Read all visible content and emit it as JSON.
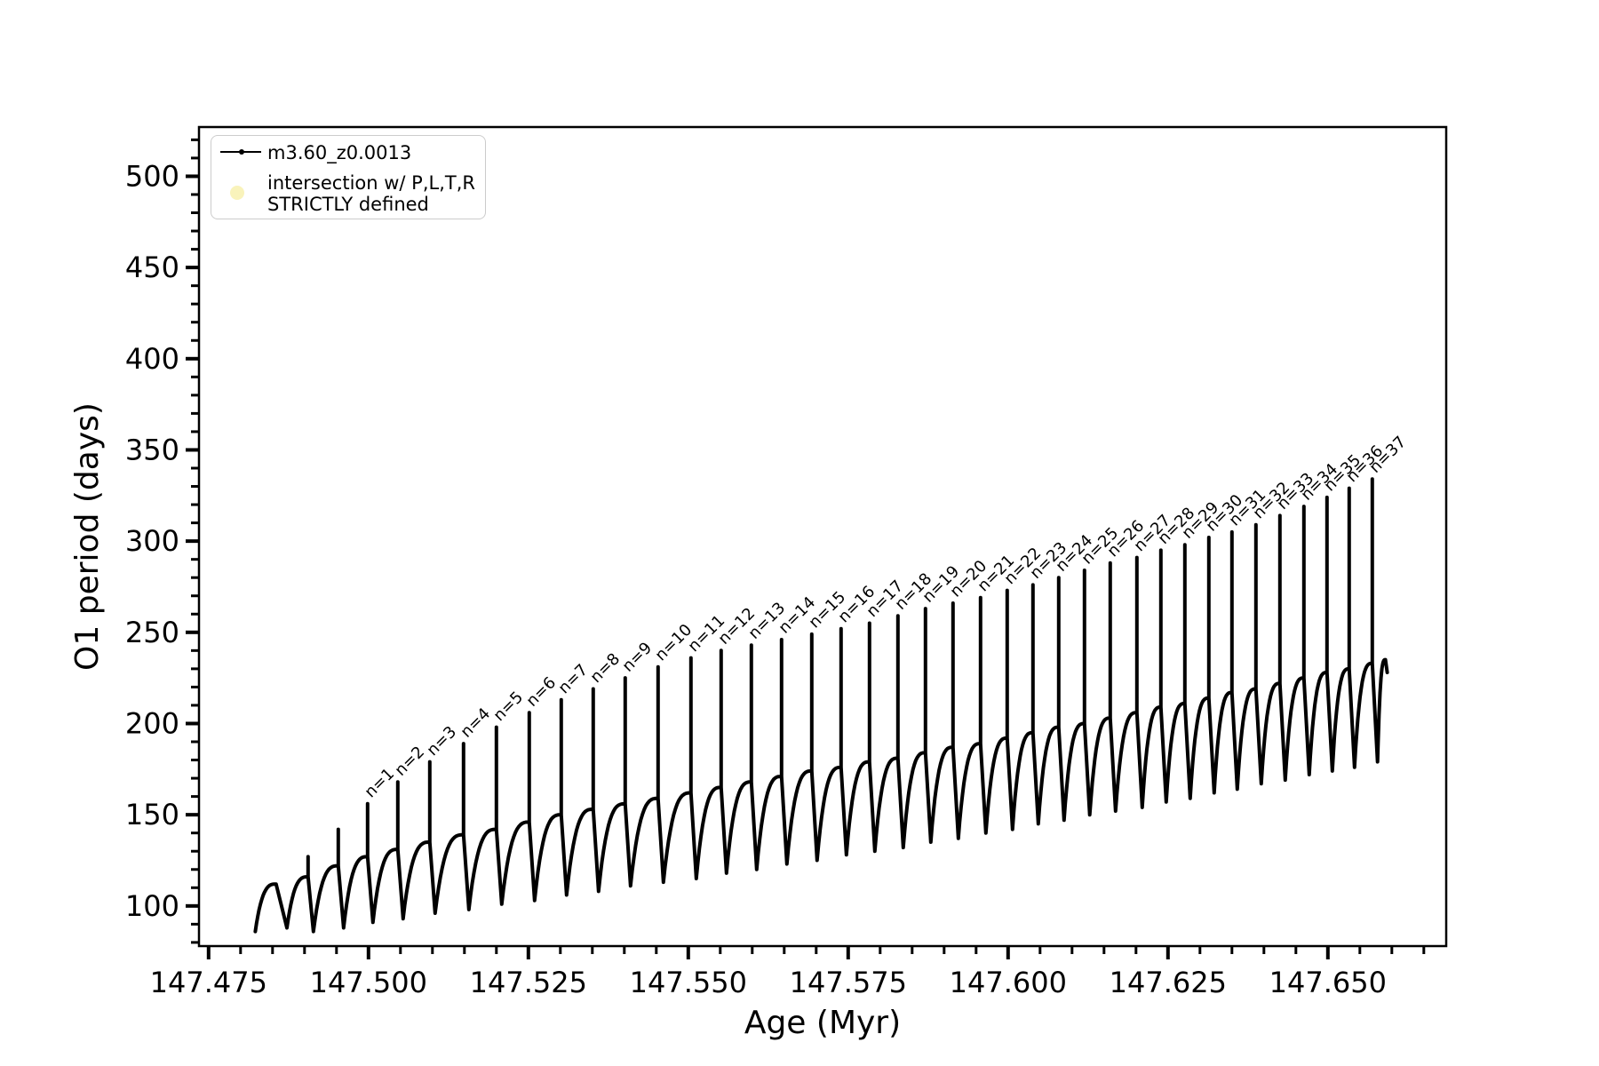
{
  "figure": {
    "background": "#ffffff",
    "line_color": "#000000"
  },
  "axes": {
    "xlabel": "Age (Myr)",
    "ylabel": "O1 period (days)"
  },
  "legend": {
    "entries": [
      {
        "label": "m3.60_z0.0013",
        "marker": "line-with-dot",
        "color": "#000000"
      },
      {
        "label_line1": "intersection w/ P,L,T,R",
        "label_line2": "STRICTLY defined",
        "marker": "circle",
        "color": "#f9f3bb"
      }
    ]
  },
  "chart_data": {
    "type": "line",
    "title": "",
    "xlabel": "Age (Myr)",
    "ylabel": "O1 period (days)",
    "series": [
      {
        "name": "m3.60_z0.0013",
        "color": "#000000"
      }
    ],
    "xlim": [
      147.4735,
      147.6685
    ],
    "ylim": [
      78,
      527
    ],
    "xticks": [
      147.475,
      147.5,
      147.525,
      147.55,
      147.575,
      147.6,
      147.625,
      147.65
    ],
    "xtick_labels": [
      "147.475",
      "147.500",
      "147.525",
      "147.550",
      "147.575",
      "147.600",
      "147.625",
      "147.650"
    ],
    "yticks": [
      100,
      150,
      200,
      250,
      300,
      350,
      400,
      450,
      500
    ],
    "ytick_labels": [
      "100",
      "150",
      "200",
      "250",
      "300",
      "350",
      "400",
      "450",
      "500"
    ],
    "x_minor_step": 0.005,
    "y_minor_step": 10,
    "grid": false,
    "legend_position": "upper left",
    "curve_start": {
      "age": 147.4823,
      "value": 86
    },
    "default_pulse_width": 0.00083,
    "pulses": [
      {
        "label": null,
        "age": 147.48555,
        "hump": 112,
        "peak": null,
        "dip": 88,
        "w": 0.0017
      },
      {
        "label": null,
        "age": 147.49056,
        "hump": 116,
        "peak": 127,
        "dip": 86
      },
      {
        "label": null,
        "age": 147.49528,
        "hump": 122,
        "peak": 142,
        "dip": 88
      },
      {
        "label": "n=1",
        "age": 147.49986,
        "hump": 127,
        "peak": 156,
        "dip": 91
      },
      {
        "label": "n=2",
        "age": 147.50458,
        "hump": 131,
        "peak": 168,
        "dip": 93
      },
      {
        "label": "n=3",
        "age": 147.50958,
        "hump": 135,
        "peak": 179,
        "dip": 96
      },
      {
        "label": "n=4",
        "age": 147.51486,
        "hump": 139,
        "peak": 189,
        "dip": 98
      },
      {
        "label": "n=5",
        "age": 147.52,
        "hump": 142,
        "peak": 198,
        "dip": 101
      },
      {
        "label": "n=6",
        "age": 147.52514,
        "hump": 146,
        "peak": 206,
        "dip": 103
      },
      {
        "label": "n=7",
        "age": 147.53014,
        "hump": 150,
        "peak": 213,
        "dip": 106
      },
      {
        "label": "n=8",
        "age": 147.53514,
        "hump": 153,
        "peak": 219,
        "dip": 108
      },
      {
        "label": "n=9",
        "age": 147.54014,
        "hump": 156,
        "peak": 225,
        "dip": 111
      },
      {
        "label": "n=10",
        "age": 147.54528,
        "hump": 159,
        "peak": 231,
        "dip": 113
      },
      {
        "label": "n=11",
        "age": 147.55042,
        "hump": 162,
        "peak": 236,
        "dip": 115
      },
      {
        "label": "n=12",
        "age": 147.55514,
        "hump": 165,
        "peak": 240,
        "dip": 118
      },
      {
        "label": "n=13",
        "age": 147.55986,
        "hump": 168,
        "peak": 243,
        "dip": 120
      },
      {
        "label": "n=14",
        "age": 147.56458,
        "hump": 171,
        "peak": 246,
        "dip": 123
      },
      {
        "label": "n=15",
        "age": 147.56931,
        "hump": 174,
        "peak": 249,
        "dip": 125
      },
      {
        "label": "n=16",
        "age": 147.57389,
        "hump": 176,
        "peak": 252,
        "dip": 128
      },
      {
        "label": "n=17",
        "age": 147.57833,
        "hump": 179,
        "peak": 255,
        "dip": 130
      },
      {
        "label": "n=18",
        "age": 147.58278,
        "hump": 181,
        "peak": 259,
        "dip": 132
      },
      {
        "label": "n=19",
        "age": 147.58708,
        "hump": 184,
        "peak": 263,
        "dip": 135
      },
      {
        "label": "n=20",
        "age": 147.59139,
        "hump": 187,
        "peak": 266,
        "dip": 137
      },
      {
        "label": "n=21",
        "age": 147.5957,
        "hump": 189,
        "peak": 269,
        "dip": 140
      },
      {
        "label": "n=22",
        "age": 147.59986,
        "hump": 192,
        "peak": 273,
        "dip": 142
      },
      {
        "label": "n=23",
        "age": 147.60389,
        "hump": 195,
        "peak": 276,
        "dip": 145
      },
      {
        "label": "n=24",
        "age": 147.60792,
        "hump": 198,
        "peak": 280,
        "dip": 147
      },
      {
        "label": "n=25",
        "age": 147.61194,
        "hump": 200,
        "peak": 284,
        "dip": 150
      },
      {
        "label": "n=26",
        "age": 147.61597,
        "hump": 203,
        "peak": 288,
        "dip": 152
      },
      {
        "label": "n=27",
        "age": 147.62014,
        "hump": 206,
        "peak": 291,
        "dip": 154
      },
      {
        "label": "n=28",
        "age": 147.62389,
        "hump": 209,
        "peak": 295,
        "dip": 157
      },
      {
        "label": "n=29",
        "age": 147.62764,
        "hump": 211,
        "peak": 298,
        "dip": 159
      },
      {
        "label": "n=30",
        "age": 147.63139,
        "hump": 214,
        "peak": 302,
        "dip": 162
      },
      {
        "label": "n=31",
        "age": 147.635,
        "hump": 217,
        "peak": 305,
        "dip": 164
      },
      {
        "label": "n=32",
        "age": 147.63875,
        "hump": 219,
        "peak": 309,
        "dip": 167
      },
      {
        "label": "n=33",
        "age": 147.6425,
        "hump": 222,
        "peak": 314,
        "dip": 169
      },
      {
        "label": "n=34",
        "age": 147.64625,
        "hump": 225,
        "peak": 319,
        "dip": 172
      },
      {
        "label": "n=35",
        "age": 147.64986,
        "hump": 228,
        "peak": 324,
        "dip": 174
      },
      {
        "label": "n=36",
        "age": 147.65333,
        "hump": 230,
        "peak": 329,
        "dip": 176
      },
      {
        "label": "n=37",
        "age": 147.65694,
        "hump": 233,
        "peak": 334,
        "dip": 179
      },
      {
        "label": null,
        "age": 147.659,
        "hump": 235,
        "peak": null,
        "dip": 228,
        "w": 0.00028
      }
    ]
  }
}
